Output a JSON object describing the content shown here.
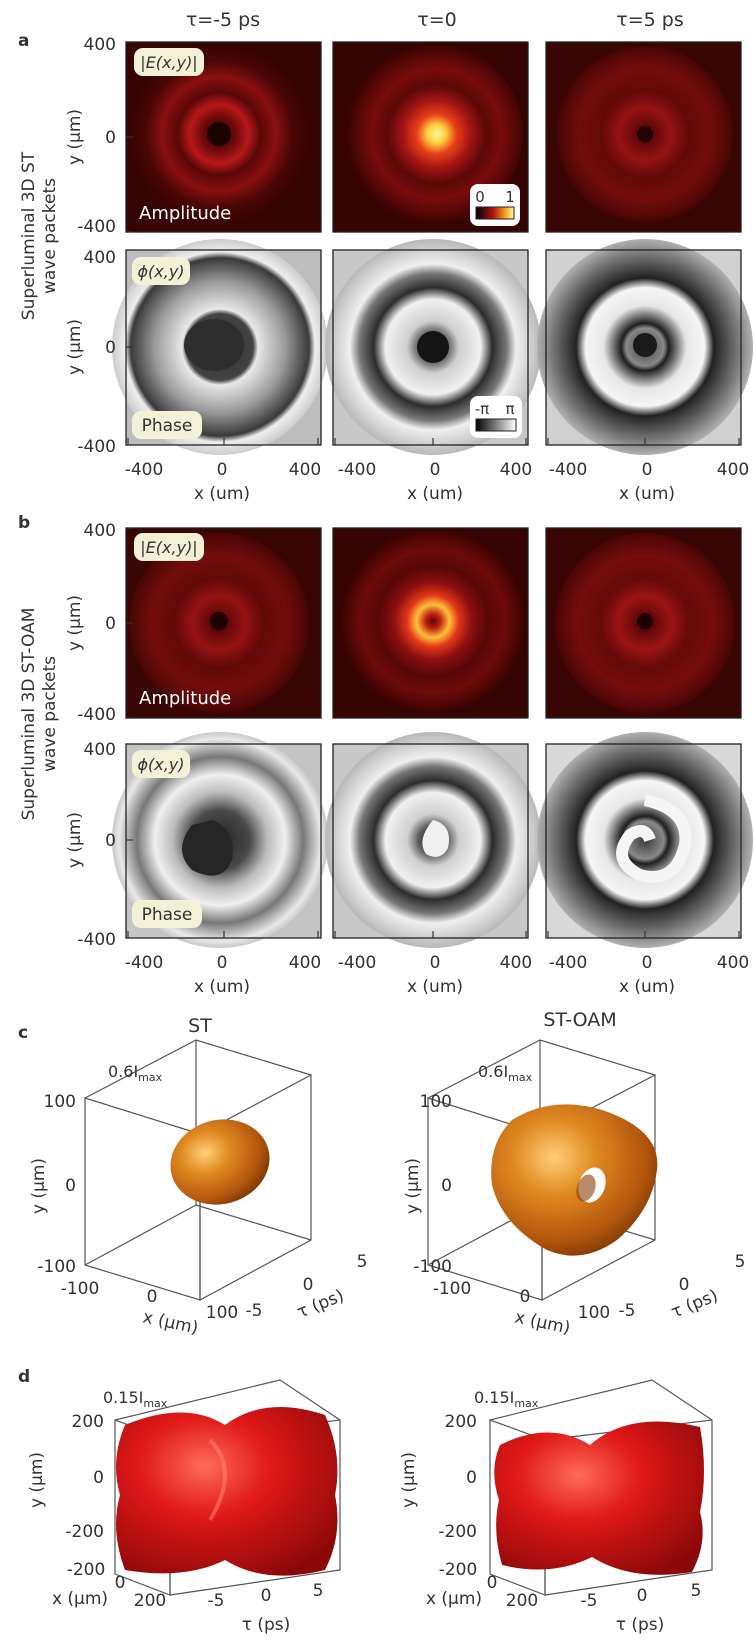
{
  "figure": {
    "panel_letters": [
      "a",
      "b",
      "c",
      "d"
    ],
    "column_headers": [
      "τ=-5 ps",
      "τ=0",
      "τ=5 ps"
    ],
    "row_group_labels": {
      "a_line1": "Superluminal 3D ST",
      "a_line2": "wave packets",
      "b_line1": "Superluminal 3D ST-OAM",
      "b_line2": "wave packets"
    },
    "map_axes": {
      "ylabel": "y (µm)",
      "xlabel": "x (um)",
      "ticks_top": "400",
      "ticks_mid": "0",
      "ticks_bottom": "-400",
      "xticks": [
        "-400",
        "0",
        "400"
      ]
    },
    "tags": {
      "amplitude_symbol": "|E(x,y)|",
      "phase_symbol": "ϕ(x,y)",
      "amplitude_word": "Amplitude",
      "phase_word": "Phase"
    },
    "colorbars": {
      "amp_min": "0",
      "amp_max": "1",
      "phase_min": "-π",
      "phase_max": "π"
    },
    "panel_c": {
      "left_title": "ST",
      "right_title": "ST-OAM",
      "iso_label": "0.6I",
      "iso_sub": "max",
      "yticks": [
        "100",
        "0",
        "-100"
      ],
      "xticks": [
        "-100",
        "0",
        "100"
      ],
      "tticks": [
        "-5",
        "0",
        "5"
      ],
      "ylabel": "y (µm)",
      "xlabel": "x (µm)",
      "tlabel": "τ (ps)"
    },
    "panel_d": {
      "iso_label": "0.15I",
      "iso_sub": "max",
      "yticks": [
        "200",
        "0",
        "-200"
      ],
      "xticks": [
        "-200",
        "0",
        "200"
      ],
      "tticks": [
        "-5",
        "0",
        "5"
      ],
      "ylabel": "y (µm)",
      "xlabel": "x (µm)",
      "tlabel": "τ (ps)"
    },
    "colors": {
      "amp_bg": "#3a0505",
      "amp_ring": "#a01212",
      "amp_peak": "#ffe46a",
      "iso_orange": "#d46f12",
      "iso_red": "#e01818",
      "tag_bg": "#f3f0d8"
    }
  }
}
